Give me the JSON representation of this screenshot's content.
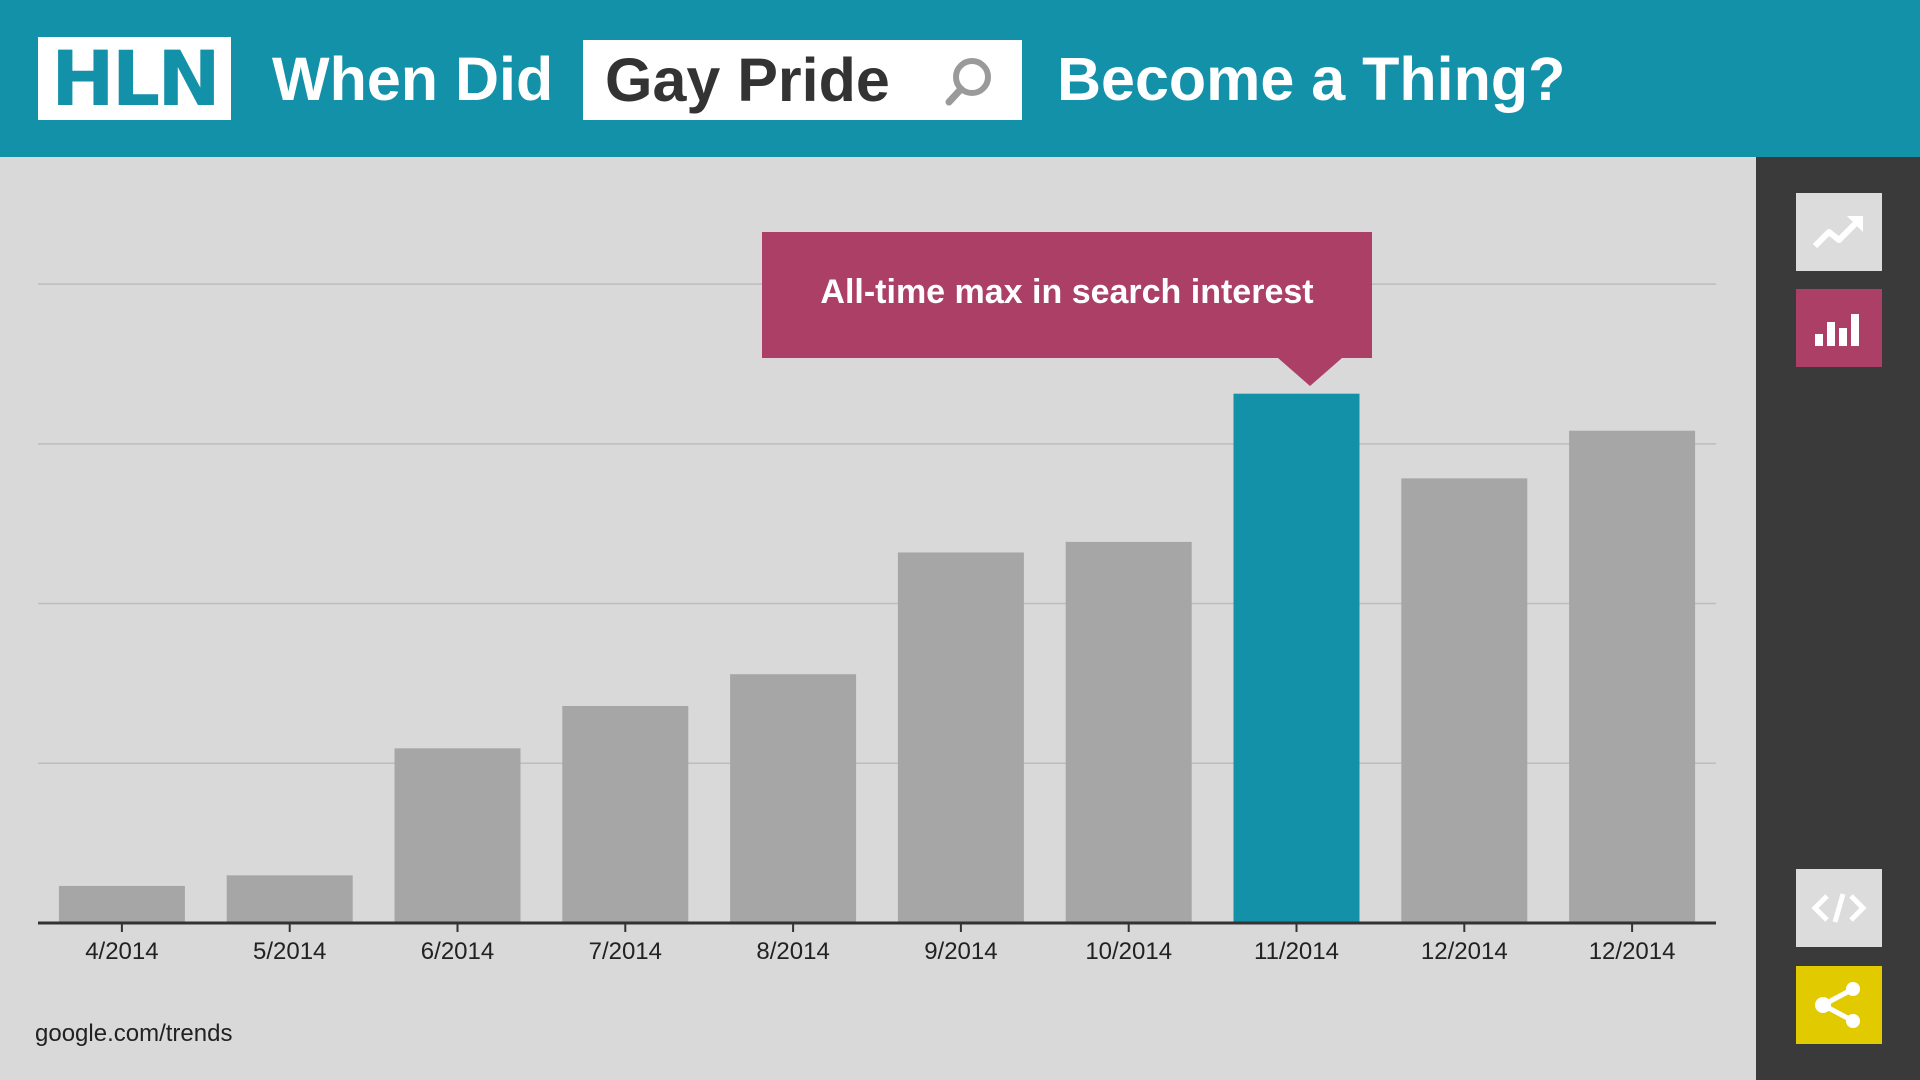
{
  "header": {
    "logo_text": "HLN",
    "title_prefix": "When Did",
    "search_term": "Gay Pride",
    "title_suffix": "Become a Thing?"
  },
  "chart_data": {
    "type": "bar",
    "categories": [
      "4/2014",
      "5/2014",
      "6/2014",
      "7/2014",
      "8/2014",
      "9/2014",
      "10/2014",
      "11/2014",
      "12/2014",
      "12/2014"
    ],
    "values": [
      7,
      9,
      33,
      41,
      47,
      70,
      72,
      100,
      84,
      93
    ],
    "highlight_index": 7,
    "annotation": "All-time max in search interest",
    "ylim": [
      0,
      120
    ],
    "grid": true,
    "colors": {
      "bar": "#a6a6a6",
      "highlight": "#1391a9",
      "annotation": "#ab3f66"
    }
  },
  "source": "google.com/trends",
  "sidebar": {
    "icons": [
      "trend-line-icon",
      "bar-chart-icon",
      "embed-code-icon",
      "share-icon"
    ]
  }
}
